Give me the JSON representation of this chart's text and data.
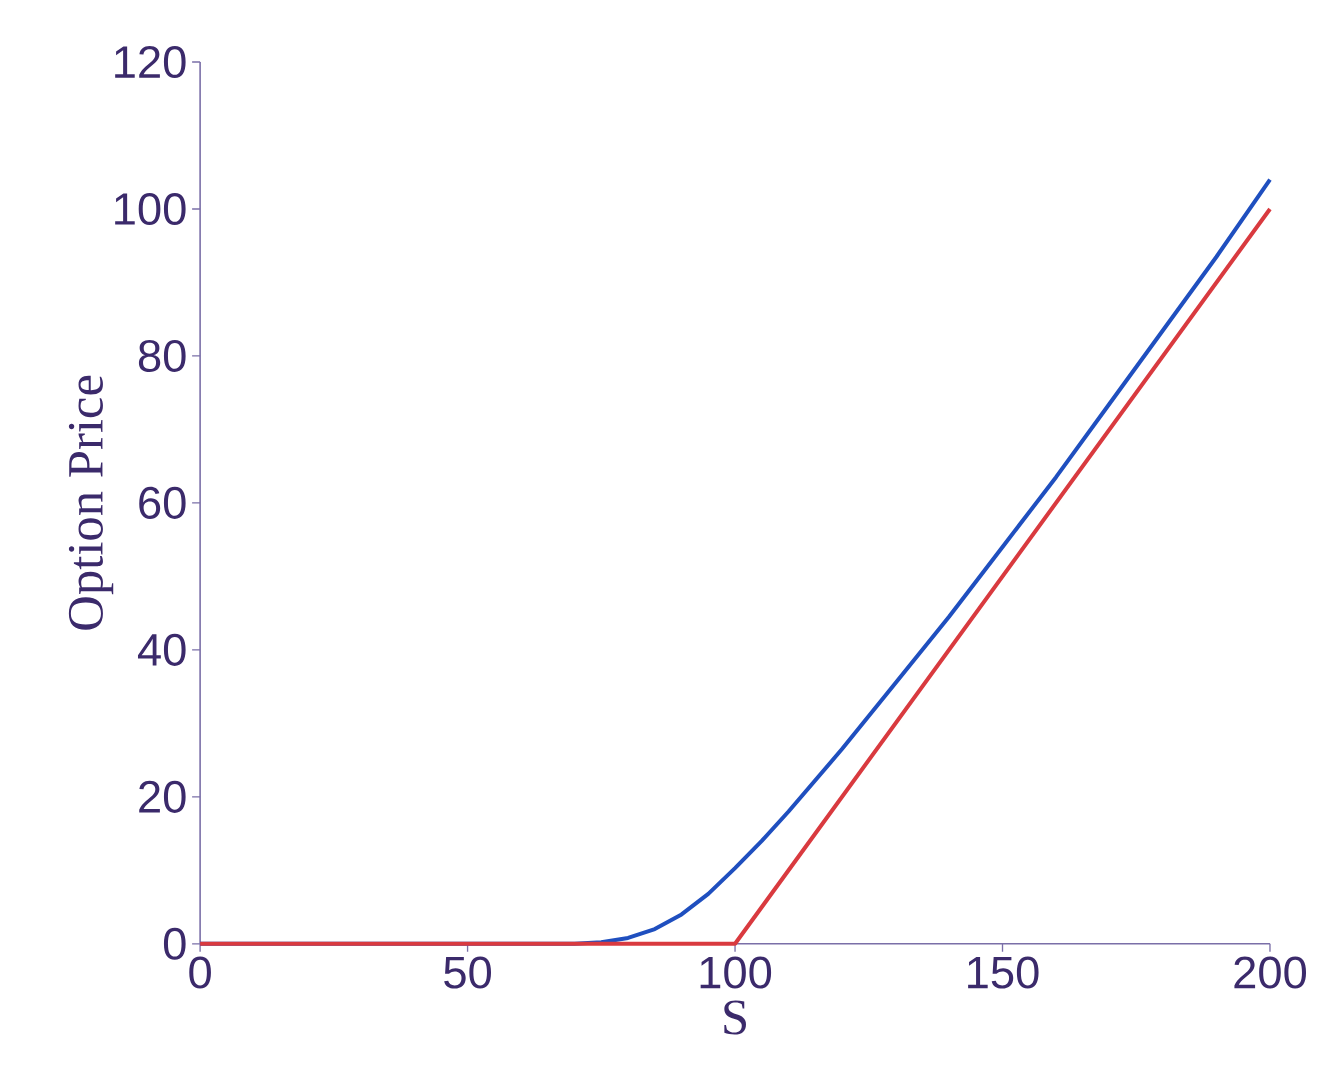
{
  "chart_data": {
    "type": "line",
    "xlabel": "S",
    "ylabel": "Option Price",
    "xlim": [
      0,
      200
    ],
    "ylim": [
      0,
      120
    ],
    "xticks": [
      0,
      50,
      100,
      150,
      200
    ],
    "yticks": [
      0,
      20,
      40,
      60,
      80,
      100,
      120
    ],
    "grid": false,
    "series": [
      {
        "color": "#1f4fbf",
        "x": [
          0,
          70,
          75,
          80,
          85,
          90,
          95,
          100,
          105,
          110,
          120,
          130,
          140,
          150,
          160,
          170,
          180,
          190,
          200
        ],
        "values": [
          0,
          0,
          0.2,
          0.8,
          2,
          4,
          6.8,
          10.3,
          14,
          18,
          26.5,
          35.5,
          44.5,
          54,
          63.5,
          73.5,
          83.5,
          93.5,
          104
        ]
      },
      {
        "color": "#d93a3f",
        "x": [
          0,
          100,
          200
        ],
        "values": [
          0,
          0,
          100
        ]
      }
    ]
  }
}
